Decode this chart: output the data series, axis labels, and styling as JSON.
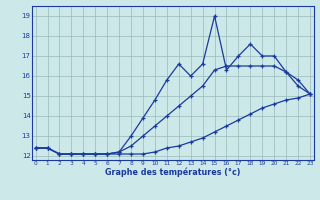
{
  "title": "Graphe des températures (°c)",
  "background_color": "#cce8e8",
  "grid_color": "#99bbbb",
  "line_color": "#1a3a9e",
  "hours": [
    0,
    1,
    2,
    3,
    4,
    5,
    6,
    7,
    8,
    9,
    10,
    11,
    12,
    13,
    14,
    15,
    16,
    17,
    18,
    19,
    20,
    21,
    22,
    23
  ],
  "series_bottom": [
    12.4,
    12.4,
    12.1,
    12.1,
    12.1,
    12.1,
    12.1,
    12.1,
    12.1,
    12.1,
    12.2,
    12.4,
    12.5,
    12.7,
    12.9,
    13.2,
    13.5,
    13.8,
    14.1,
    14.4,
    14.6,
    14.8,
    14.9,
    15.1
  ],
  "series_mid": [
    12.4,
    12.4,
    12.1,
    12.1,
    12.1,
    12.1,
    12.1,
    12.2,
    12.5,
    13.0,
    13.5,
    14.0,
    14.5,
    15.0,
    15.5,
    16.3,
    16.5,
    16.5,
    16.5,
    16.5,
    16.5,
    16.2,
    15.5,
    15.1
  ],
  "series_top": [
    12.4,
    12.4,
    12.1,
    12.1,
    12.1,
    12.1,
    12.1,
    12.2,
    13.0,
    13.9,
    14.8,
    15.8,
    16.6,
    16.0,
    16.6,
    19.0,
    16.3,
    17.0,
    17.6,
    17.0,
    17.0,
    16.2,
    15.8,
    15.1
  ],
  "ylim": [
    11.8,
    19.5
  ],
  "yticks": [
    12,
    13,
    14,
    15,
    16,
    17,
    18,
    19
  ],
  "xlim": [
    -0.3,
    23.3
  ],
  "xtick_labels": [
    "0",
    "1",
    "2",
    "3",
    "4",
    "5",
    "6",
    "7",
    "8",
    "9",
    "10",
    "11",
    "12",
    "13",
    "14",
    "15",
    "16",
    "17",
    "18",
    "19",
    "20",
    "21",
    "22",
    "23"
  ]
}
